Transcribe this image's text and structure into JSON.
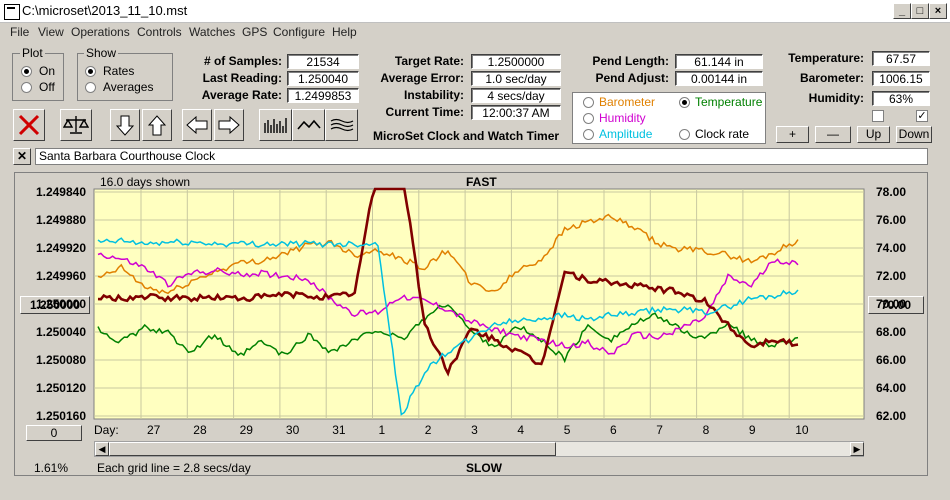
{
  "window": {
    "title": "C:\\microset\\2013_11_10.mst"
  },
  "menu": [
    "File",
    "View",
    "Operations",
    "Controls",
    "Watches",
    "GPS",
    "Configure",
    "Help"
  ],
  "plot_group": {
    "label": "Plot",
    "options": [
      "On",
      "Off"
    ],
    "selected": "On"
  },
  "show_group": {
    "label": "Show",
    "options": [
      "Rates",
      "Averages"
    ],
    "selected": "Rates"
  },
  "stats": {
    "samples_label": "# of Samples:",
    "samples": "21534",
    "last_label": "Last Reading:",
    "last": "1.250040",
    "avg_label": "Average Rate:",
    "avg": "1.2499853",
    "target_label": "Target Rate:",
    "target": "1.2500000",
    "err_label": "Average Error:",
    "err": "1.0 sec/day",
    "inst_label": "Instability:",
    "inst": "4 secs/day",
    "time_label": "Current Time:",
    "time": "12:00:37 AM",
    "pendlen_label": "Pend Length:",
    "pendlen": "61.144 in",
    "pendadj_label": "Pend Adjust:",
    "pendadj": "0.00144 in",
    "temp_label": "Temperature:",
    "temp": "67.57",
    "baro_label": "Barometer:",
    "baro": "1006.15",
    "hum_label": "Humidity:",
    "hum": "63%"
  },
  "app_caption": "MicroSet Clock and Watch Timer",
  "right_axis_options": [
    {
      "label": "Barometer",
      "color": "#e08000",
      "selected": false
    },
    {
      "label": "Temperature",
      "color": "#008000",
      "selected": true
    },
    {
      "label": "Humidity",
      "color": "#d000d0",
      "selected": false
    },
    {
      "label": "Clock rate",
      "color": "#000000",
      "selected": false
    },
    {
      "label": "Amplitude",
      "color": "#00c0e0",
      "selected": false
    }
  ],
  "small_buttons": [
    "+",
    "—",
    "Up",
    "Down"
  ],
  "clock_name": "Santa Barbara Courthouse Clock",
  "chart_info": {
    "days_shown": "16.0 days shown",
    "top_label": "FAST",
    "bottom_label": "SLOW",
    "grid_note": "Each grid line = 2.8 secs/day",
    "percent": "1.61%",
    "left_value_button": "1.250000",
    "right_value_button": "70.00",
    "scroll_value": "0",
    "day_label": "Day:"
  },
  "chart_data": {
    "type": "line",
    "yleft_ticks": [
      "1.249840",
      "1.249880",
      "1.249920",
      "1.249960",
      "1.250000",
      "1.250040",
      "1.250080",
      "1.250120",
      "1.250160"
    ],
    "yright_ticks": [
      "78.00",
      "76.00",
      "74.00",
      "72.00",
      "70.00",
      "68.00",
      "66.00",
      "64.00",
      "62.00"
    ],
    "ylim_left": [
      1.24984,
      1.25016
    ],
    "ylim_right": [
      62,
      78
    ],
    "x_ticks": [
      "27",
      "28",
      "29",
      "30",
      "31",
      "1",
      "2",
      "3",
      "4",
      "5",
      "6",
      "7",
      "8",
      "9",
      "10"
    ],
    "series": [
      {
        "name": "Barometer",
        "color": "#e08000",
        "x": [
          0,
          0.5,
          1,
          1.5,
          2,
          2.5,
          3,
          3.5,
          4,
          4.5,
          5,
          5.5,
          6,
          6.5,
          7,
          7.5,
          8,
          8.5,
          9,
          9.5,
          10,
          10.5,
          11,
          11.5,
          12,
          12.5,
          13,
          13.5,
          14,
          14.5,
          15
        ],
        "y": [
          71.8,
          72.6,
          71.2,
          70.8,
          71.6,
          72.3,
          72.9,
          73.1,
          73.6,
          74.2,
          74.4,
          73.5,
          73.9,
          73.2,
          72.6,
          73.9,
          71.4,
          70.9,
          72.4,
          73.2,
          75.3,
          75.9,
          76.2,
          75.4,
          74.3,
          73.9,
          73.8,
          73.5,
          73.0,
          73.7,
          74.6
        ]
      },
      {
        "name": "Temperature",
        "color": "#008000",
        "x": [
          0,
          0.5,
          1,
          1.5,
          2,
          2.5,
          3,
          3.5,
          4,
          4.5,
          5,
          5.5,
          6,
          6.5,
          7,
          7.5,
          8,
          8.5,
          9,
          9.5,
          10,
          10.5,
          11,
          11.5,
          12,
          12.5,
          13,
          13.5,
          14,
          14.5,
          15
        ],
        "y": [
          68.2,
          67.3,
          68.3,
          67.9,
          66.6,
          67.8,
          66.2,
          67.3,
          66.3,
          67.8,
          66.6,
          67.4,
          68.2,
          67.4,
          69.0,
          70.1,
          68.0,
          67.0,
          68.4,
          67.4,
          66.1,
          68.4,
          67.5,
          68.6,
          69.2,
          68.1,
          67.5,
          68.7,
          67.4,
          67.1,
          67.6
        ]
      },
      {
        "name": "Humidity",
        "color": "#d000d0",
        "x": [
          0,
          0.5,
          1,
          1.5,
          2,
          2.5,
          3,
          3.5,
          4,
          4.5,
          5,
          5.5,
          6,
          6.5,
          7,
          7.5,
          8,
          8.5,
          9,
          9.5,
          10,
          10.5,
          11,
          11.5,
          12,
          12.5,
          13,
          13.5,
          14,
          14.5,
          15
        ],
        "y": [
          73.6,
          73.2,
          72.6,
          71.4,
          72.2,
          72.4,
          72.1,
          72.2,
          72.0,
          71.8,
          70.3,
          69.3,
          69.4,
          70.6,
          70.2,
          69.6,
          68.7,
          68.2,
          67.7,
          67.4,
          67.0,
          67.2,
          66.4,
          67.8,
          67.6,
          68.3,
          69.0,
          71.9,
          71.3,
          73.2,
          72.8
        ]
      },
      {
        "name": "Clock rate",
        "color": "#800000",
        "x": [
          0,
          0.5,
          1,
          1.5,
          2,
          2.5,
          3,
          3.5,
          4,
          4.5,
          5,
          5.5,
          6,
          6.5,
          7,
          7.5,
          8,
          8.5,
          9,
          9.5,
          10,
          10.5,
          11,
          11.5,
          12,
          12.5,
          13,
          13.5,
          14,
          14.5,
          15
        ],
        "y": [
          70.4,
          70.4,
          70.5,
          70.4,
          70.4,
          70.5,
          70.4,
          70.5,
          70.7,
          70.6,
          70.5,
          70.8,
          80.0,
          80.0,
          68.5,
          65.2,
          68.2,
          67.4,
          66.6,
          65.6,
          72.3,
          71.7,
          71.5,
          71.3,
          71.1,
          70.8,
          70.2,
          68.5,
          67.0,
          67.5,
          67.1
        ]
      },
      {
        "name": "Amplitude",
        "color": "#00c0e0",
        "x": [
          0,
          0.5,
          1,
          1.5,
          2,
          2.5,
          3,
          3.5,
          4,
          4.5,
          5,
          5.5,
          6,
          6.5,
          7,
          7.5,
          8,
          8.5,
          9,
          9.5,
          10,
          10.5,
          11,
          11.5,
          12,
          12.5,
          13,
          13.5,
          14,
          14.5,
          15
        ],
        "y": [
          74.4,
          74.5,
          74.3,
          74.4,
          74.4,
          74.3,
          74.3,
          74.3,
          74.3,
          74.3,
          74.3,
          74.3,
          74.3,
          62.0,
          65.2,
          66.6,
          67.5,
          68.6,
          68.8,
          69.0,
          69.2,
          68.9,
          69.2,
          69.3,
          69.6,
          69.6,
          69.4,
          69.8,
          70.4,
          70.6,
          71.0
        ]
      }
    ]
  }
}
